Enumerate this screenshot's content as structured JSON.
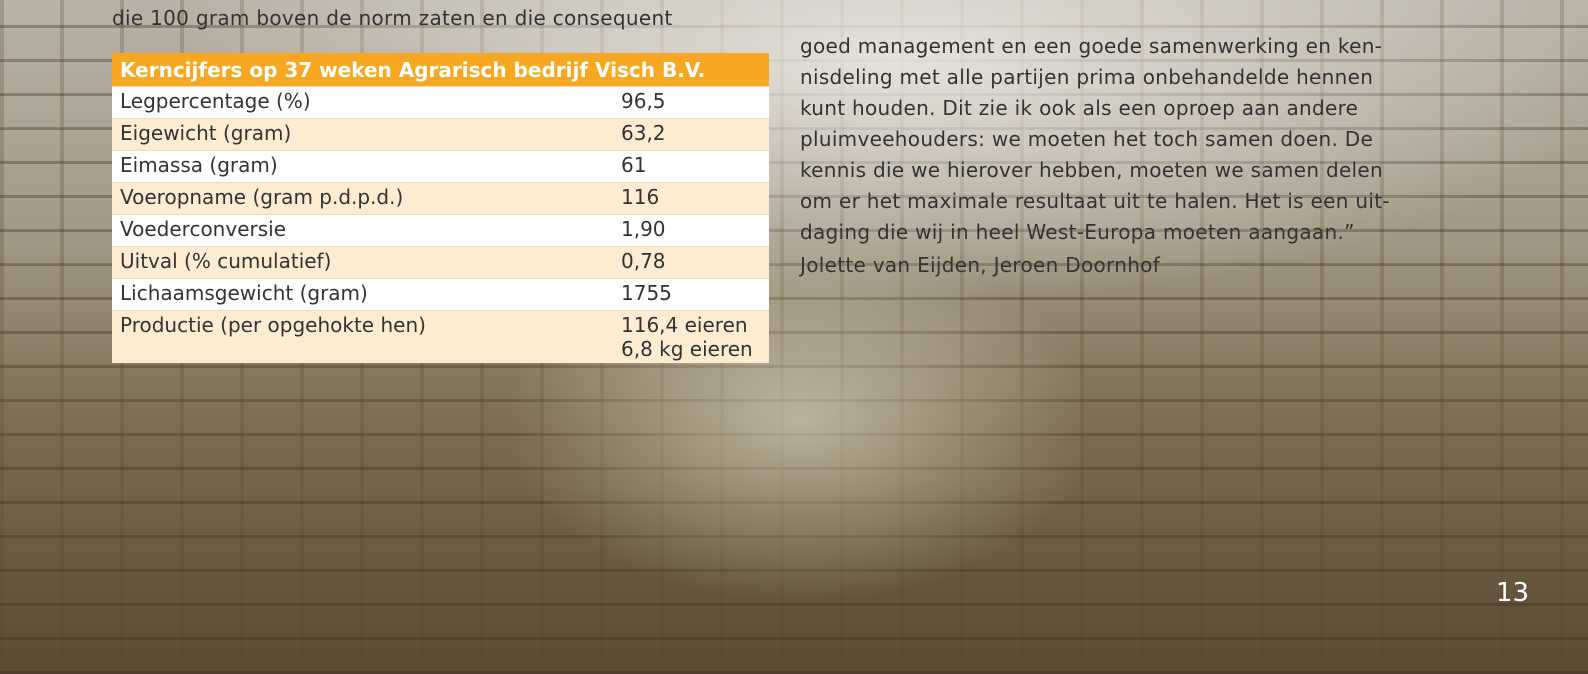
{
  "left_text": "die 100 gram boven de norm zaten en die consequent",
  "table": {
    "title": "Kerncijfers op 37 weken Agrarisch bedrijf Visch B.V.",
    "rows": [
      [
        "Legpercentage (%)",
        "96,5"
      ],
      [
        "Eigewicht (gram)",
        "63,2"
      ],
      [
        "Eimassa (gram)",
        "61"
      ],
      [
        "Voeropname (gram p.d.p.d.)",
        "116"
      ],
      [
        "Voederconversie",
        "1,90"
      ],
      [
        "Uitval (% cumulatief)",
        "0,78"
      ],
      [
        "Lichaamsgewicht (gram)",
        "1755"
      ],
      [
        "Productie (per opgehokte hen)",
        [
          "116,4 eieren",
          "6,8 kg eieren"
        ]
      ]
    ]
  },
  "right_text": [
    "goed management en een goede samenwerking en ken-",
    "nisdeling met alle partijen prima onbehandelde hennen",
    "kunt houden. Dit zie ik ook als een oproep aan andere",
    "pluimveehouders: we moeten het toch samen doen. De",
    "kennis die we hierover hebben, moeten we samen delen",
    "om er het maximale resultaat uit te halen. Het is een uit-",
    "daging die wij in heel West-Europa moeten aangaan.”"
  ],
  "author": "Jolette van Eijden, Jeroen Doornhof",
  "page_number": "13"
}
